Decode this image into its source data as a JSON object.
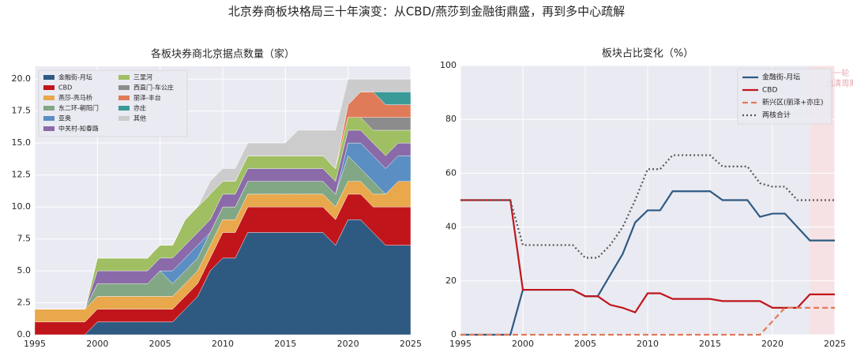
{
  "title": "北京券商板块格局三十年演变：从CBD/燕莎到金融街鼎盛，再到多中心疏解",
  "chart_data": [
    {
      "type": "area",
      "stacked": true,
      "title": "各板块券商北京据点数量（家）",
      "legend": "upper left",
      "legend_columns": 2,
      "grid": true,
      "x": [
        1995,
        1996,
        1997,
        1998,
        1999,
        2000,
        2001,
        2002,
        2003,
        2004,
        2005,
        2006,
        2007,
        2008,
        2009,
        2010,
        2011,
        2012,
        2013,
        2014,
        2015,
        2016,
        2017,
        2018,
        2019,
        2020,
        2021,
        2022,
        2023,
        2024,
        2025
      ],
      "xlim": [
        1995,
        2025
      ],
      "xticks": [
        1995,
        2000,
        2005,
        2010,
        2015,
        2020,
        2025
      ],
      "ylim": [
        0,
        21
      ],
      "yticks": [
        {
          "value": 0,
          "label": "0.0"
        },
        {
          "value": 2.5,
          "label": "2.5"
        },
        {
          "value": 5,
          "label": "5.0"
        },
        {
          "value": 7.5,
          "label": "7.5"
        },
        {
          "value": 10,
          "label": "10.0"
        },
        {
          "value": 12.5,
          "label": "12.5"
        },
        {
          "value": 15,
          "label": "15.0"
        },
        {
          "value": 17.5,
          "label": "17.5"
        },
        {
          "value": 20,
          "label": "20.0"
        }
      ],
      "series": [
        {
          "name": "金融街-月坛",
          "color": "#2e5a82",
          "values": [
            0,
            0,
            0,
            0,
            0,
            1,
            1,
            1,
            1,
            1,
            1,
            1,
            2,
            3,
            5,
            6,
            6,
            8,
            8,
            8,
            8,
            8,
            8,
            8,
            7,
            9,
            9,
            8,
            7,
            7,
            7
          ]
        },
        {
          "name": "CBD",
          "color": "#c0161b",
          "values": [
            1,
            1,
            1,
            1,
            1,
            1,
            1,
            1,
            1,
            1,
            1,
            1,
            1,
            1,
            1,
            2,
            2,
            2,
            2,
            2,
            2,
            2,
            2,
            2,
            2,
            2,
            2,
            2,
            3,
            3,
            3
          ]
        },
        {
          "name": "燕莎-亮马桥",
          "color": "#e8a84b",
          "values": [
            1,
            1,
            1,
            1,
            1,
            1,
            1,
            1,
            1,
            1,
            1,
            1,
            1,
            1,
            1,
            1,
            1,
            1,
            1,
            1,
            1,
            1,
            1,
            1,
            1,
            1,
            1,
            1,
            1,
            2,
            2
          ]
        },
        {
          "name": "东二环-朝阳门",
          "color": "#82a785",
          "values": [
            0,
            0,
            0,
            0,
            0,
            1,
            1,
            1,
            1,
            1,
            2,
            1,
            1,
            1,
            1,
            1,
            1,
            1,
            1,
            1,
            1,
            1,
            1,
            1,
            1,
            2,
            1,
            1,
            0,
            0,
            0
          ]
        },
        {
          "name": "亚奥",
          "color": "#5b8ec3",
          "values": [
            0,
            0,
            0,
            0,
            0,
            0,
            0,
            0,
            0,
            0,
            0,
            1,
            1,
            1,
            0,
            0,
            0,
            0,
            0,
            0,
            0,
            0,
            0,
            0,
            0,
            1,
            2,
            2,
            2,
            2,
            2
          ]
        },
        {
          "name": "中关村-知春路",
          "color": "#8a6aa8",
          "values": [
            0,
            0,
            0,
            0,
            0,
            1,
            1,
            1,
            1,
            1,
            1,
            1,
            1,
            1,
            1,
            1,
            1,
            1,
            1,
            1,
            1,
            1,
            1,
            1,
            1,
            1,
            1,
            1,
            1,
            1,
            1
          ]
        },
        {
          "name": "三里河",
          "color": "#9fbf62",
          "values": [
            0,
            0,
            0,
            0,
            0,
            1,
            1,
            1,
            1,
            1,
            1,
            1,
            2,
            2,
            2,
            1,
            1,
            1,
            1,
            1,
            1,
            1,
            1,
            1,
            1,
            1,
            1,
            1,
            2,
            1,
            1
          ]
        },
        {
          "name": "西直门-车公庄",
          "color": "#8c8c8c",
          "values": [
            0,
            0,
            0,
            0,
            0,
            0,
            0,
            0,
            0,
            0,
            0,
            0,
            0,
            0,
            0,
            0,
            0,
            0,
            0,
            0,
            0,
            0,
            0,
            0,
            0,
            0,
            0,
            1,
            1,
            1,
            1
          ]
        },
        {
          "name": "丽泽-丰台",
          "color": "#e07b5a",
          "values": [
            0,
            0,
            0,
            0,
            0,
            0,
            0,
            0,
            0,
            0,
            0,
            0,
            0,
            0,
            0,
            0,
            0,
            0,
            0,
            0,
            0,
            0,
            0,
            0,
            0,
            1,
            2,
            2,
            1,
            1,
            1
          ]
        },
        {
          "name": "亦庄",
          "color": "#3a9a98",
          "values": [
            0,
            0,
            0,
            0,
            0,
            0,
            0,
            0,
            0,
            0,
            0,
            0,
            0,
            0,
            0,
            0,
            0,
            0,
            0,
            0,
            0,
            0,
            0,
            0,
            0,
            0,
            0,
            0,
            1,
            1,
            1
          ]
        },
        {
          "name": "其他",
          "color": "#cccccc",
          "values": [
            0,
            0,
            0,
            0,
            0,
            0,
            0,
            0,
            0,
            0,
            0,
            0,
            0,
            0,
            1,
            1,
            1,
            1,
            1,
            1,
            1,
            2,
            2,
            2,
            3,
            2,
            1,
            1,
            1,
            1,
            1
          ]
        }
      ]
    },
    {
      "type": "line",
      "title": "板块占比变化（%）",
      "legend": "upper right",
      "grid": true,
      "x": [
        1995,
        1996,
        1997,
        1998,
        1999,
        2000,
        2001,
        2002,
        2003,
        2004,
        2005,
        2006,
        2007,
        2008,
        2009,
        2010,
        2011,
        2012,
        2013,
        2014,
        2015,
        2016,
        2017,
        2018,
        2019,
        2020,
        2021,
        2022,
        2023,
        2024,
        2025
      ],
      "xlim": [
        1995,
        2025
      ],
      "xticks": [
        1995,
        2000,
        2005,
        2010,
        2015,
        2020,
        2025
      ],
      "ylim": [
        0,
        100
      ],
      "yticks": [
        0,
        20,
        40,
        60,
        80,
        100
      ],
      "shade_x": [
        2023,
        2025
      ],
      "shade_color": "#f6e2e4",
      "annotation": [
        "一轮",
        "出清周期"
      ],
      "series": [
        {
          "name": "金融街-月坛",
          "color": "#2e5a82",
          "style": "solid",
          "values": [
            0,
            0,
            0,
            0,
            0,
            16.7,
            16.7,
            16.7,
            16.7,
            16.7,
            14.3,
            14.3,
            22.2,
            30,
            41.7,
            46.2,
            46.2,
            53.3,
            53.3,
            53.3,
            53.3,
            50,
            50,
            50,
            43.8,
            45,
            45,
            40,
            35,
            35,
            35
          ]
        },
        {
          "name": "CBD",
          "color": "#c0161b",
          "style": "solid",
          "values": [
            50,
            50,
            50,
            50,
            50,
            16.7,
            16.7,
            16.7,
            16.7,
            16.7,
            14.3,
            14.3,
            11.1,
            10,
            8.3,
            15.4,
            15.4,
            13.3,
            13.3,
            13.3,
            13.3,
            12.5,
            12.5,
            12.5,
            12.5,
            10,
            10,
            10,
            15,
            15,
            15
          ]
        },
        {
          "name": "新兴区(丽泽+亦庄)",
          "color": "#e07b5a",
          "style": "dashed",
          "values": [
            0,
            0,
            0,
            0,
            0,
            0,
            0,
            0,
            0,
            0,
            0,
            0,
            0,
            0,
            0,
            0,
            0,
            0,
            0,
            0,
            0,
            0,
            0,
            0,
            0,
            5,
            10,
            10,
            10,
            10,
            10
          ]
        },
        {
          "name": "两核合计",
          "color": "#555555",
          "style": "dotted",
          "values": [
            50,
            50,
            50,
            50,
            50,
            33.3,
            33.3,
            33.3,
            33.3,
            33.3,
            28.6,
            28.6,
            33.3,
            40,
            50,
            61.5,
            61.5,
            66.7,
            66.7,
            66.7,
            66.7,
            62.5,
            62.5,
            62.5,
            56.3,
            55,
            55,
            50,
            50,
            50,
            50
          ]
        }
      ]
    }
  ]
}
